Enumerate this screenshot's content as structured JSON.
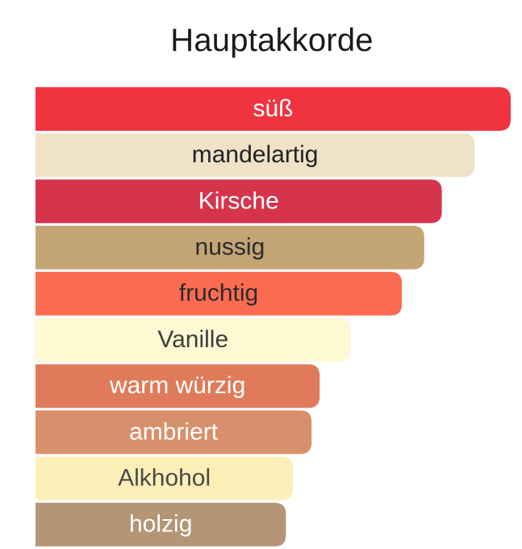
{
  "chart_data": {
    "type": "bar",
    "orientation": "horizontal",
    "title": "Hauptakkorde",
    "xlabel": "",
    "ylabel": "",
    "grid": false,
    "legend": "none",
    "xlim": [
      0,
      100
    ],
    "categories": [
      "süß",
      "mandelartig",
      "Kirsche",
      "nussig",
      "fruchtig",
      "Vanille",
      "warm würzig",
      "ambriert",
      "Alkhohol",
      "holzig"
    ],
    "values": [
      100,
      92.4,
      85.5,
      81.8,
      77.1,
      66.3,
      59.8,
      58.1,
      54.2,
      52.7
    ],
    "colors": [
      "#ef3440",
      "#efe2c6",
      "#d6344c",
      "#c3a576",
      "#fb6b51",
      "#fdf9d3",
      "#df7b5a",
      "#d8906c",
      "#fcefb7",
      "#b49676"
    ],
    "label_colors": [
      "#ffffff",
      "#222222",
      "#ffffff",
      "#2b2b2b",
      "#2b2b2b",
      "#3d3d3d",
      "#ffffff",
      "#ffffff",
      "#4a4a4a",
      "#ffffff"
    ]
  }
}
